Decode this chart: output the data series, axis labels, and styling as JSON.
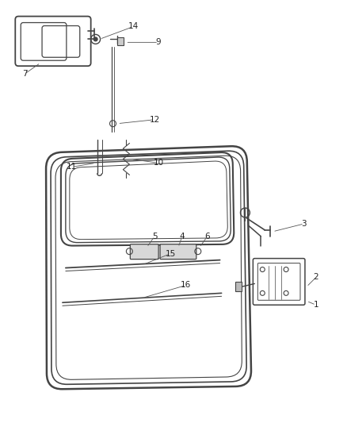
{
  "bg_color": "#ffffff",
  "line_color": "#444444",
  "label_color": "#222222",
  "fig_width": 4.38,
  "fig_height": 5.33,
  "dpi": 100
}
